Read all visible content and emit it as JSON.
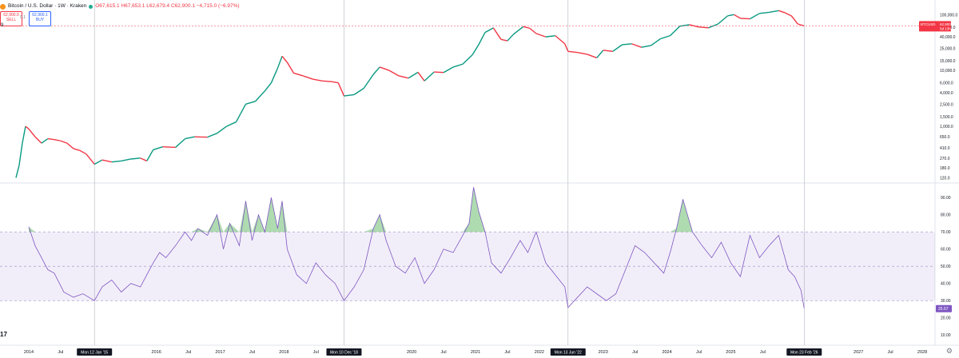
{
  "header": {
    "title": "Bitcoin / U.S. Dollar · 1W · Kraken",
    "ohlc": "O67,615.1 H67,653.1 L62,679.4 C62,900.1 −4,715.0 (−6.97%)",
    "sell_price": "62,900.0",
    "sell_label": "SELL",
    "buy_price": "62,900.1",
    "buy_label": "BUY",
    "spread": "0.1",
    "pane2_label": "9"
  },
  "price_tag": {
    "symbol": "BTCUSD",
    "price": "62,900.1",
    "countdown": "5d 13h"
  },
  "rsi_tag": "25.57",
  "logo_text": "17",
  "chart_data": [
    {
      "type": "line",
      "title": "Bitcoin / U.S. Dollar · 1W · Kraken",
      "scale": "log",
      "y_ticks": [
        "100,000.0",
        "60,000.0",
        "40,000.0",
        "25,000.0",
        "15,000.0",
        "10,000.0",
        "6,000.0",
        "4,000.0",
        "2,500.0",
        "1,500.0",
        "1,000.0",
        "650.0",
        "410.0",
        "270.0",
        "180.0",
        "120.0"
      ],
      "y_tick_values": [
        100000,
        60000,
        40000,
        25000,
        15000,
        10000,
        6000,
        4000,
        2500,
        1500,
        1000,
        650,
        410,
        270,
        180,
        120
      ],
      "ylim": [
        100,
        150000
      ],
      "xlim": [
        2013.55,
        2028.2
      ],
      "x_ticks": [
        "2014",
        "Jul",
        "2016",
        "Jul",
        "2017",
        "Jul",
        "2018",
        "Jul",
        "2020",
        "Jul",
        "2021",
        "Jul",
        "2022",
        "Jul",
        "2023",
        "Jul",
        "2024",
        "Jul",
        "2025",
        "Jul",
        "2027",
        "Jul",
        "2028"
      ],
      "x_tick_positions": [
        2014,
        2014.5,
        2016,
        2016.5,
        2017,
        2017.5,
        2018,
        2018.5,
        2020,
        2020.5,
        2021,
        2021.5,
        2022,
        2022.5,
        2023,
        2023.5,
        2024,
        2024.5,
        2025,
        2025.5,
        2027,
        2027.5,
        2028
      ],
      "highlight_dates": [
        "Mon 12 Jan '15",
        "Mon 10 Dec '18",
        "Mon 13 Jun '22",
        "Mon 23 Feb '26"
      ],
      "highlight_positions": [
        2015.03,
        2018.94,
        2022.45,
        2026.15
      ],
      "last_price": 62900.1,
      "series": [
        {
          "x": [
            2013.8,
            2013.85,
            2013.9,
            2013.95,
            2014.0,
            2014.1,
            2014.2,
            2014.3,
            2014.4,
            2014.5,
            2014.6,
            2014.7,
            2014.8,
            2014.9,
            2015.03,
            2015.15,
            2015.3,
            2015.45,
            2015.6,
            2015.75,
            2015.85,
            2015.95,
            2016.1,
            2016.3,
            2016.45,
            2016.6,
            2016.8,
            2016.95,
            2017.1,
            2017.25,
            2017.4,
            2017.55,
            2017.7,
            2017.8,
            2017.9,
            2017.97,
            2018.05,
            2018.15,
            2018.3,
            2018.45,
            2018.6,
            2018.75,
            2018.85,
            2018.94,
            2019.1,
            2019.25,
            2019.4,
            2019.5,
            2019.65,
            2019.8,
            2019.95,
            2020.1,
            2020.2,
            2020.35,
            2020.5,
            2020.65,
            2020.8,
            2020.95,
            2021.05,
            2021.15,
            2021.28,
            2021.4,
            2021.5,
            2021.6,
            2021.75,
            2021.85,
            2021.95,
            2022.1,
            2022.25,
            2022.4,
            2022.45,
            2022.6,
            2022.75,
            2022.9,
            2023.0,
            2023.15,
            2023.3,
            2023.45,
            2023.6,
            2023.75,
            2023.9,
            2024.05,
            2024.2,
            2024.35,
            2024.5,
            2024.65,
            2024.8,
            2024.95,
            2025.05,
            2025.15,
            2025.3,
            2025.45,
            2025.6,
            2025.75,
            2025.85,
            2025.95,
            2026.05,
            2026.15
          ],
          "values": [
            120,
            200,
            500,
            1000,
            900,
            650,
            500,
            600,
            580,
            550,
            500,
            400,
            370,
            320,
            210,
            250,
            230,
            240,
            260,
            270,
            240,
            380,
            430,
            420,
            600,
            650,
            640,
            750,
            1000,
            1200,
            2500,
            2800,
            4300,
            6000,
            11000,
            18000,
            14000,
            9000,
            8000,
            7000,
            6500,
            6300,
            6000,
            3500,
            3700,
            4800,
            8500,
            11500,
            10000,
            8000,
            7300,
            9300,
            6500,
            9400,
            9200,
            11500,
            13000,
            19000,
            29000,
            48000,
            58000,
            36000,
            34000,
            45000,
            61000,
            57000,
            46000,
            40000,
            42000,
            30000,
            22000,
            21000,
            19500,
            16800,
            23000,
            22000,
            29000,
            30000,
            26000,
            28000,
            37000,
            42000,
            62000,
            66000,
            60000,
            58000,
            68000,
            95000,
            100000,
            86000,
            84000,
            105000,
            110000,
            118000,
            108000,
            95000,
            68000,
            62900
          ]
        }
      ]
    },
    {
      "type": "line",
      "title": "",
      "y_ticks": [
        "90.00",
        "80.00",
        "70.00",
        "60.00",
        "50.00",
        "40.00",
        "30.00",
        "20.00",
        "10.00"
      ],
      "y_tick_values": [
        90,
        80,
        70,
        60,
        50,
        40,
        30,
        20,
        10
      ],
      "ylim": [
        5,
        98
      ],
      "bands": {
        "upper": 70,
        "middle": 50,
        "lower": 30
      },
      "last_value": 25.57,
      "series": [
        {
          "x": [
            2014.0,
            2014.1,
            2014.2,
            2014.3,
            2014.4,
            2014.55,
            2014.7,
            2014.85,
            2015.03,
            2015.15,
            2015.3,
            2015.45,
            2015.6,
            2015.75,
            2015.85,
            2015.95,
            2016.05,
            2016.15,
            2016.3,
            2016.45,
            2016.55,
            2016.65,
            2016.8,
            2016.95,
            2017.05,
            2017.15,
            2017.3,
            2017.4,
            2017.5,
            2017.6,
            2017.7,
            2017.8,
            2017.9,
            2017.97,
            2018.05,
            2018.2,
            2018.35,
            2018.5,
            2018.65,
            2018.8,
            2018.94,
            2019.1,
            2019.25,
            2019.4,
            2019.5,
            2019.6,
            2019.75,
            2019.9,
            2020.05,
            2020.2,
            2020.35,
            2020.5,
            2020.65,
            2020.8,
            2020.9,
            2020.97,
            2021.05,
            2021.15,
            2021.25,
            2021.4,
            2021.55,
            2021.7,
            2021.82,
            2021.95,
            2022.1,
            2022.25,
            2022.4,
            2022.45,
            2022.6,
            2022.75,
            2022.9,
            2023.05,
            2023.2,
            2023.35,
            2023.5,
            2023.65,
            2023.8,
            2023.95,
            2024.05,
            2024.15,
            2024.25,
            2024.4,
            2024.55,
            2024.7,
            2024.85,
            2025.0,
            2025.15,
            2025.3,
            2025.45,
            2025.6,
            2025.75,
            2025.9,
            2026.0,
            2026.1,
            2026.15
          ],
          "values": [
            73,
            62,
            55,
            48,
            46,
            35,
            32,
            34,
            30,
            38,
            42,
            35,
            40,
            38,
            45,
            52,
            58,
            55,
            62,
            70,
            65,
            72,
            68,
            80,
            60,
            75,
            62,
            88,
            65,
            80,
            70,
            90,
            72,
            88,
            60,
            45,
            40,
            52,
            45,
            40,
            30,
            38,
            48,
            72,
            80,
            65,
            50,
            46,
            55,
            40,
            48,
            60,
            58,
            68,
            75,
            96,
            82,
            70,
            52,
            46,
            55,
            65,
            58,
            70,
            52,
            45,
            38,
            26,
            32,
            38,
            34,
            30,
            34,
            48,
            62,
            58,
            52,
            46,
            58,
            72,
            89,
            70,
            62,
            55,
            64,
            52,
            44,
            68,
            55,
            62,
            68,
            48,
            44,
            36,
            25.57
          ]
        }
      ]
    }
  ]
}
